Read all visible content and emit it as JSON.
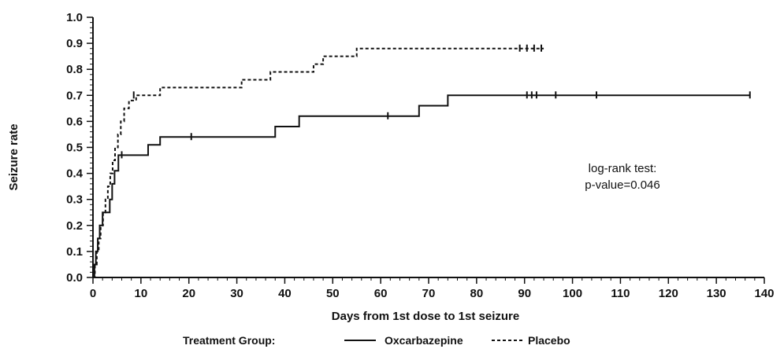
{
  "chart_data": {
    "type": "line",
    "step": true,
    "title": "",
    "xlabel": "Days from 1st dose to 1st seizure",
    "ylabel": "Seizure rate",
    "xlim": [
      0,
      140
    ],
    "ylim": [
      0,
      1.0
    ],
    "xticks": [
      0,
      10,
      20,
      30,
      40,
      50,
      60,
      70,
      80,
      90,
      100,
      110,
      120,
      130,
      140
    ],
    "yticks": [
      "0.0",
      "0.1",
      "0.2",
      "0.3",
      "0.4",
      "0.5",
      "0.6",
      "0.7",
      "0.8",
      "0.9",
      "1.0"
    ],
    "legend": {
      "title": "Treatment Group:",
      "position": "bottom",
      "entries": [
        {
          "name": "Oxcarbazepine",
          "style": "solid"
        },
        {
          "name": "Placebo",
          "style": "dashed"
        }
      ]
    },
    "annotation": [
      "log-rank test:",
      "p-value=0.046"
    ],
    "series": [
      {
        "name": "Oxcarbazepine",
        "style": "solid",
        "points": [
          [
            0,
            0
          ],
          [
            0.3,
            0.05
          ],
          [
            0.6,
            0.1
          ],
          [
            1,
            0.15
          ],
          [
            1.4,
            0.2
          ],
          [
            2,
            0.25
          ],
          [
            3.5,
            0.3
          ],
          [
            4,
            0.36
          ],
          [
            4.5,
            0.41
          ],
          [
            5.3,
            0.47
          ],
          [
            11.5,
            0.51
          ],
          [
            14,
            0.54
          ],
          [
            38,
            0.58
          ],
          [
            43,
            0.62
          ],
          [
            68,
            0.66
          ],
          [
            74,
            0.7
          ],
          [
            137,
            0.7
          ]
        ],
        "censored": [
          [
            6,
            0.47
          ],
          [
            20.5,
            0.54
          ],
          [
            61.5,
            0.62
          ],
          [
            90.5,
            0.7
          ],
          [
            91.5,
            0.7
          ],
          [
            92.5,
            0.7
          ],
          [
            96.5,
            0.7
          ],
          [
            105,
            0.7
          ],
          [
            137,
            0.7
          ]
        ]
      },
      {
        "name": "Placebo",
        "style": "dashed",
        "points": [
          [
            0,
            0
          ],
          [
            0.4,
            0.05
          ],
          [
            0.8,
            0.1
          ],
          [
            1.2,
            0.15
          ],
          [
            1.6,
            0.2
          ],
          [
            2.1,
            0.25
          ],
          [
            2.6,
            0.3
          ],
          [
            3.1,
            0.35
          ],
          [
            3.6,
            0.4
          ],
          [
            4.1,
            0.45
          ],
          [
            4.6,
            0.5
          ],
          [
            5.2,
            0.55
          ],
          [
            5.8,
            0.6
          ],
          [
            6.5,
            0.65
          ],
          [
            7.5,
            0.68
          ],
          [
            9,
            0.7
          ],
          [
            14,
            0.73
          ],
          [
            31,
            0.76
          ],
          [
            37,
            0.79
          ],
          [
            46,
            0.82
          ],
          [
            48,
            0.85
          ],
          [
            55,
            0.88
          ],
          [
            94,
            0.88
          ]
        ],
        "censored": [
          [
            8.5,
            0.7
          ],
          [
            89,
            0.88
          ],
          [
            90.5,
            0.88
          ],
          [
            92,
            0.88
          ],
          [
            93.5,
            0.88
          ]
        ]
      }
    ]
  }
}
